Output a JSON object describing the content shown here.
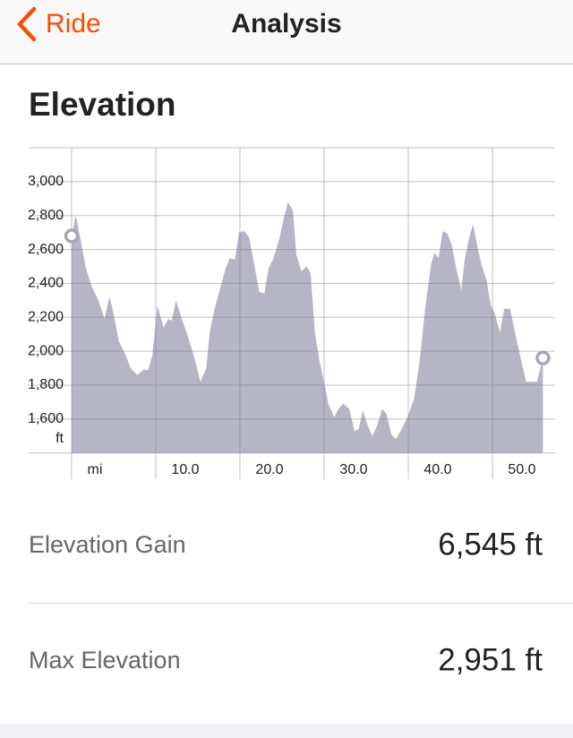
{
  "nav": {
    "back": "Ride",
    "title": "Analysis"
  },
  "section_title": "Elevation",
  "chart_data": {
    "type": "area",
    "xlabel": "mi",
    "ylabel": "ft",
    "x": [
      0,
      0.5,
      1.1,
      1.7,
      2.4,
      3.2,
      3.9,
      4.5,
      5.0,
      5.6,
      6.4,
      7.0,
      7.8,
      8.5,
      9.1,
      9.6,
      10.2,
      10.9,
      11.5,
      11.9,
      12.4,
      13.1,
      13.8,
      14.6,
      15.3,
      16.0,
      16.4,
      17.0,
      17.7,
      18.3,
      18.8,
      19.4,
      19.9,
      20.5,
      21.1,
      21.7,
      22.3,
      22.9,
      23.4,
      24.0,
      24.7,
      25.2,
      25.7,
      26.3,
      26.7,
      27.3,
      27.9,
      28.4,
      28.9,
      29.5,
      30.0,
      30.5,
      31.2,
      31.7,
      32.3,
      33.0,
      33.6,
      34.1,
      34.6,
      35.2,
      35.7,
      36.3,
      36.9,
      37.4,
      38.0,
      38.5,
      39.1,
      39.9,
      40.7,
      41.4,
      42.0,
      42.7,
      43.1,
      43.6,
      44.1,
      44.7,
      45.2,
      45.7,
      46.3,
      46.7,
      47.2,
      47.7,
      48.2,
      48.7,
      49.3,
      49.8,
      50.3,
      50.9,
      51.4,
      52.1,
      52.9,
      53.5,
      54.0,
      54.8,
      55.3,
      56.0
    ],
    "values": [
      2680,
      2800,
      2650,
      2490,
      2380,
      2300,
      2190,
      2320,
      2220,
      2060,
      1980,
      1900,
      1860,
      1890,
      1890,
      1980,
      2270,
      2140,
      2190,
      2180,
      2300,
      2190,
      2090,
      1960,
      1820,
      1900,
      2110,
      2250,
      2380,
      2490,
      2550,
      2540,
      2700,
      2710,
      2670,
      2510,
      2350,
      2340,
      2490,
      2550,
      2670,
      2780,
      2880,
      2830,
      2570,
      2470,
      2500,
      2460,
      2110,
      1930,
      1820,
      1690,
      1610,
      1660,
      1690,
      1660,
      1530,
      1540,
      1650,
      1560,
      1500,
      1560,
      1660,
      1630,
      1510,
      1480,
      1530,
      1610,
      1720,
      1960,
      2250,
      2510,
      2580,
      2550,
      2710,
      2690,
      2620,
      2490,
      2360,
      2540,
      2660,
      2750,
      2620,
      2510,
      2420,
      2270,
      2220,
      2110,
      2250,
      2250,
      2060,
      1930,
      1820,
      1820,
      1820,
      1960
    ],
    "color": "#b5b5c6",
    "xlim": [
      0,
      56
    ],
    "ylim": [
      1400,
      3200
    ],
    "xticks": [
      {
        "value": 10,
        "label": "10.0"
      },
      {
        "value": 20,
        "label": "20.0"
      },
      {
        "value": 30,
        "label": "30.0"
      },
      {
        "value": 40,
        "label": "40.0"
      },
      {
        "value": 50,
        "label": "50.0"
      }
    ],
    "yticks": [
      {
        "value": 1600,
        "label": "1,600"
      },
      {
        "value": 1800,
        "label": "1,800"
      },
      {
        "value": 2000,
        "label": "2,000"
      },
      {
        "value": 2200,
        "label": "2,200"
      },
      {
        "value": 2400,
        "label": "2,400"
      },
      {
        "value": 2600,
        "label": "2,600"
      },
      {
        "value": 2800,
        "label": "2,800"
      },
      {
        "value": 3000,
        "label": "3,000"
      }
    ],
    "grid": true
  },
  "stats": [
    {
      "label": "Elevation Gain",
      "value": "6,545 ft"
    },
    {
      "label": "Max Elevation",
      "value": "2,951 ft"
    }
  ]
}
